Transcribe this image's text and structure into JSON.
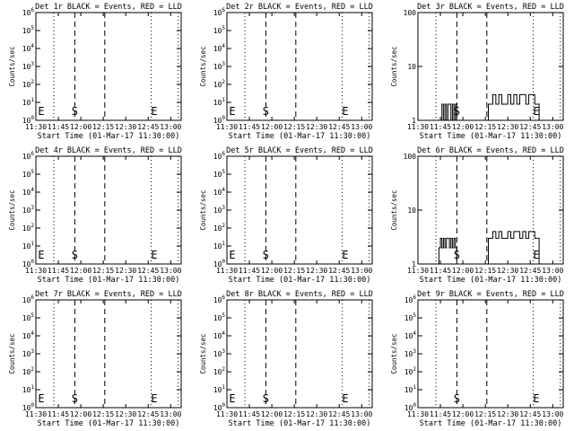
{
  "chart_data": [
    {
      "type": "line",
      "title": "Det 1r BLACK = Events, RED = LLD",
      "xlabel": "Start Time (01-Mar-17 11:30:00)",
      "ylabel": "Counts/sec",
      "x_ticks": [
        "11:30",
        "11:45",
        "12:00",
        "12:15",
        "12:30",
        "12:45",
        "13:00"
      ],
      "x_range_minutes": [
        0,
        97
      ],
      "yscale": "log",
      "ylim": [
        1,
        1000000
      ],
      "y_ticks": [
        "10^0",
        "10^1",
        "10^2",
        "10^3",
        "10^4",
        "10^5",
        "10^6"
      ],
      "markers": [
        {
          "label": "E",
          "x": 0
        },
        {
          "label": "S",
          "x": 26
        },
        {
          "label": "E",
          "x": 79
        }
      ],
      "dotted_lines": [
        12,
        77,
        95
      ],
      "dashed_lines": [
        26,
        46
      ],
      "series": []
    },
    {
      "type": "line",
      "title": "Det 2r BLACK = Events, RED = LLD",
      "xlabel": "Start Time (01-Mar-17 11:30:00)",
      "ylabel": "Counts/sec",
      "x_ticks": [
        "11:30",
        "11:45",
        "12:00",
        "12:15",
        "12:30",
        "12:45",
        "13:00"
      ],
      "x_range_minutes": [
        0,
        97
      ],
      "yscale": "log",
      "ylim": [
        1,
        1000000
      ],
      "y_ticks": [
        "10^0",
        "10^1",
        "10^2",
        "10^3",
        "10^4",
        "10^5",
        "10^6"
      ],
      "markers": [
        {
          "label": "E",
          "x": 0
        },
        {
          "label": "S",
          "x": 26
        },
        {
          "label": "E",
          "x": 79
        }
      ],
      "dotted_lines": [
        12,
        77,
        95
      ],
      "dashed_lines": [
        26,
        46
      ],
      "series": []
    },
    {
      "type": "line",
      "title": "Det 3r BLACK = Events, RED = LLD",
      "xlabel": "Start Time (01-Mar-17 11:30:00)",
      "ylabel": "Counts/sec",
      "x_ticks": [
        "11:30",
        "11:45",
        "12:00",
        "12:15",
        "12:30",
        "12:45",
        "13:00"
      ],
      "x_range_minutes": [
        0,
        97
      ],
      "yscale": "log",
      "ylim": [
        1,
        100
      ],
      "y_ticks": [
        "1",
        "10",
        "100"
      ],
      "markers": [
        {
          "label": "S",
          "x": 26
        },
        {
          "label": "E",
          "x": 79
        }
      ],
      "dotted_lines": [
        12,
        77,
        95
      ],
      "dashed_lines": [
        26,
        46
      ],
      "series": [
        {
          "segments": [
            {
              "x": [
                15,
                16,
                17,
                18,
                19,
                20,
                21,
                22,
                23,
                24,
                25
              ],
              "y": [
                1,
                2,
                1,
                2,
                1,
                2,
                2,
                1,
                2,
                1,
                2
              ]
            },
            {
              "x": [
                47,
                48,
                50,
                52,
                54,
                56,
                58,
                60,
                62,
                64,
                66,
                68,
                70,
                72,
                74,
                76,
                78,
                80
              ],
              "y": [
                2,
                2,
                3,
                2,
                3,
                2,
                2,
                3,
                2,
                3,
                2,
                3,
                3,
                2,
                3,
                3,
                2,
                2
              ]
            }
          ]
        }
      ]
    },
    {
      "type": "line",
      "title": "Det 4r BLACK = Events, RED = LLD",
      "xlabel": "Start Time (01-Mar-17 11:30:00)",
      "ylabel": "Counts/sec",
      "x_ticks": [
        "11:30",
        "11:45",
        "12:00",
        "12:15",
        "12:30",
        "12:45",
        "13:00"
      ],
      "x_range_minutes": [
        0,
        97
      ],
      "yscale": "log",
      "ylim": [
        1,
        1000000
      ],
      "y_ticks": [
        "10^0",
        "10^1",
        "10^2",
        "10^3",
        "10^4",
        "10^5",
        "10^6"
      ],
      "markers": [
        {
          "label": "E",
          "x": 0
        },
        {
          "label": "S",
          "x": 26
        },
        {
          "label": "E",
          "x": 79
        }
      ],
      "dotted_lines": [
        12,
        77,
        95
      ],
      "dashed_lines": [
        26,
        46
      ],
      "series": []
    },
    {
      "type": "line",
      "title": "Det 5r BLACK = Events, RED = LLD",
      "xlabel": "Start Time (01-Mar-17 11:30:00)",
      "ylabel": "Counts/sec",
      "x_ticks": [
        "11:30",
        "11:45",
        "12:00",
        "12:15",
        "12:30",
        "12:45",
        "13:00"
      ],
      "x_range_minutes": [
        0,
        97
      ],
      "yscale": "log",
      "ylim": [
        1,
        1000000
      ],
      "y_ticks": [
        "10^0",
        "10^1",
        "10^2",
        "10^3",
        "10^4",
        "10^5",
        "10^6"
      ],
      "markers": [
        {
          "label": "E",
          "x": 0
        },
        {
          "label": "S",
          "x": 26
        },
        {
          "label": "E",
          "x": 79
        }
      ],
      "dotted_lines": [
        12,
        77,
        95
      ],
      "dashed_lines": [
        26,
        46
      ],
      "series": []
    },
    {
      "type": "line",
      "title": "Det 6r BLACK = Events, RED = LLD",
      "xlabel": "Start Time (01-Mar-17 11:30:00)",
      "ylabel": "Counts/sec",
      "x_ticks": [
        "11:30",
        "11:45",
        "12:00",
        "12:15",
        "12:30",
        "12:45",
        "13:00"
      ],
      "x_range_minutes": [
        0,
        97
      ],
      "yscale": "log",
      "ylim": [
        1,
        100
      ],
      "y_ticks": [
        "1",
        "10",
        "100"
      ],
      "markers": [
        {
          "label": "S",
          "x": 26
        },
        {
          "label": "E",
          "x": 79
        }
      ],
      "dotted_lines": [
        12,
        77,
        95
      ],
      "dashed_lines": [
        26,
        46
      ],
      "series": [
        {
          "segments": [
            {
              "x": [
                14,
                15,
                16,
                17,
                18,
                19,
                20,
                21,
                22,
                23,
                24,
                25
              ],
              "y": [
                2,
                3,
                2,
                3,
                2,
                3,
                3,
                2,
                3,
                2,
                3,
                2
              ]
            },
            {
              "x": [
                47,
                48,
                50,
                52,
                54,
                56,
                58,
                60,
                62,
                64,
                66,
                68,
                70,
                72,
                74,
                76,
                78,
                80
              ],
              "y": [
                3,
                3,
                4,
                3,
                4,
                3,
                3,
                4,
                3,
                4,
                4,
                3,
                4,
                3,
                4,
                4,
                3,
                3
              ]
            }
          ]
        }
      ]
    },
    {
      "type": "line",
      "title": "Det 7r BLACK = Events, RED = LLD",
      "xlabel": "Start Time (01-Mar-17 11:30:00)",
      "ylabel": "Counts/sec",
      "x_ticks": [
        "11:30",
        "11:45",
        "12:00",
        "12:15",
        "12:30",
        "12:45",
        "13:00"
      ],
      "x_range_minutes": [
        0,
        97
      ],
      "yscale": "log",
      "ylim": [
        1,
        1000000
      ],
      "y_ticks": [
        "10^0",
        "10^1",
        "10^2",
        "10^3",
        "10^4",
        "10^5",
        "10^6"
      ],
      "markers": [
        {
          "label": "E",
          "x": 0
        },
        {
          "label": "S",
          "x": 26
        },
        {
          "label": "E",
          "x": 79
        }
      ],
      "dotted_lines": [
        12,
        77,
        95
      ],
      "dashed_lines": [
        26,
        46
      ],
      "series": []
    },
    {
      "type": "line",
      "title": "Det 8r BLACK = Events, RED = LLD",
      "xlabel": "Start Time (01-Mar-17 11:30:00)",
      "ylabel": "Counts/sec",
      "x_ticks": [
        "11:30",
        "11:45",
        "12:00",
        "12:15",
        "12:30",
        "12:45",
        "13:00"
      ],
      "x_range_minutes": [
        0,
        97
      ],
      "yscale": "log",
      "ylim": [
        1,
        1000000
      ],
      "y_ticks": [
        "10^0",
        "10^1",
        "10^2",
        "10^3",
        "10^4",
        "10^5",
        "10^6"
      ],
      "markers": [
        {
          "label": "E",
          "x": 0
        },
        {
          "label": "S",
          "x": 26
        },
        {
          "label": "E",
          "x": 79
        }
      ],
      "dotted_lines": [
        12,
        77,
        95
      ],
      "dashed_lines": [
        26,
        46
      ],
      "series": []
    },
    {
      "type": "line",
      "title": "Det 9r BLACK = Events, RED = LLD",
      "xlabel": "Start Time (01-Mar-17 11:30:00)",
      "ylabel": "Counts/sec",
      "x_ticks": [
        "11:30",
        "11:45",
        "12:00",
        "12:15",
        "12:30",
        "12:45",
        "13:00"
      ],
      "x_range_minutes": [
        0,
        97
      ],
      "yscale": "log",
      "ylim": [
        1,
        1000000
      ],
      "y_ticks": [
        "10^0",
        "10^1",
        "10^2",
        "10^3",
        "10^4",
        "10^5",
        "10^6"
      ],
      "markers": [
        {
          "label": "S",
          "x": 26
        },
        {
          "label": "E",
          "x": 79
        }
      ],
      "dotted_lines": [
        12,
        77,
        95
      ],
      "dashed_lines": [
        26,
        46
      ],
      "series": []
    }
  ]
}
